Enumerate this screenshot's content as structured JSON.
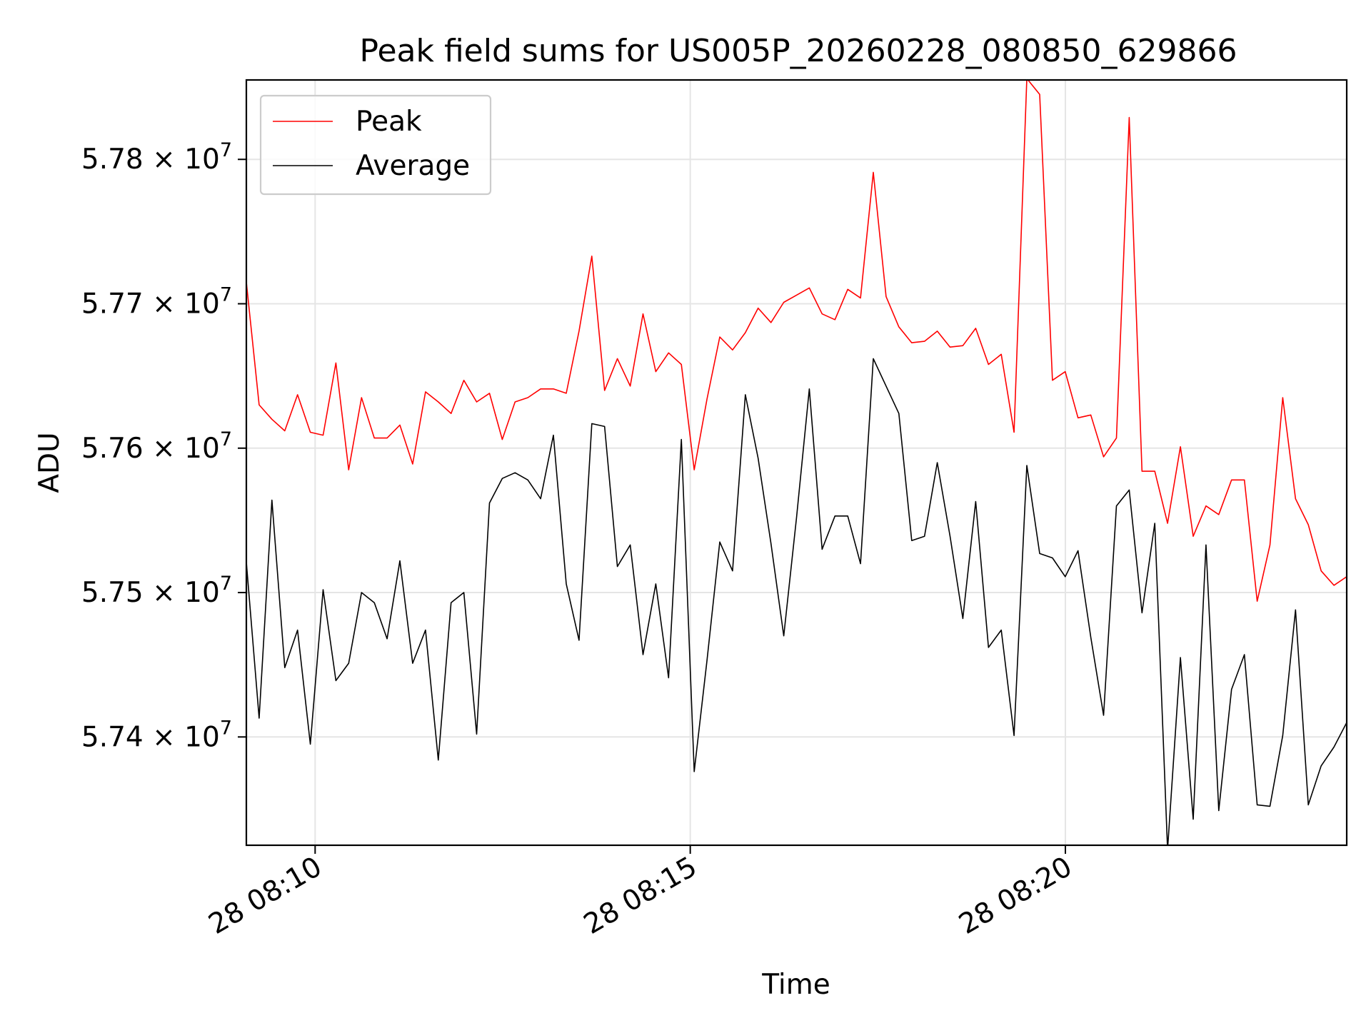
{
  "chart_data": {
    "type": "line",
    "title": "Peak field sums for US005P_20260228_080850_629866",
    "xlabel": "Time",
    "ylabel": "ADU",
    "x_start": "2026-02-28 08:09:05",
    "x_end": "2026-02-28 08:23:45",
    "x_tick_labels": [
      "28 08:10",
      "28 08:15",
      "28 08:20"
    ],
    "x_ticks": [
      "2026-02-28 08:10:00",
      "2026-02-28 08:15:00",
      "2026-02-28 08:20:00"
    ],
    "y_ticks": [
      57400000,
      57500000,
      57600000,
      57700000,
      57800000
    ],
    "y_tick_labels": [
      {
        "mantissa": "5.74",
        "exponent": "7"
      },
      {
        "mantissa": "5.75",
        "exponent": "7"
      },
      {
        "mantissa": "5.76",
        "exponent": "7"
      },
      {
        "mantissa": "5.77",
        "exponent": "7"
      },
      {
        "mantissa": "5.78",
        "exponent": "7"
      }
    ],
    "y_times_ten": "× 10",
    "ylim": [
      57325000,
      57855000
    ],
    "grid": true,
    "legend_position": "top-left",
    "series": [
      {
        "name": "Peak",
        "color": "#ff0000",
        "values": [
          57715000,
          57630000,
          57620000,
          57612000,
          57637000,
          57611000,
          57609000,
          57659000,
          57585000,
          57635000,
          57607000,
          57607000,
          57616000,
          57589000,
          57639000,
          57632000,
          57624000,
          57647000,
          57632000,
          57638000,
          57606000,
          57632000,
          57635000,
          57641000,
          57641000,
          57638000,
          57681000,
          57733000,
          57640000,
          57662000,
          57643000,
          57693000,
          57653000,
          57666000,
          57658000,
          57585000,
          57634000,
          57677000,
          57668000,
          57680000,
          57697000,
          57687000,
          57701000,
          57706000,
          57711000,
          57693000,
          57689000,
          57710000,
          57704000,
          57791000,
          57705000,
          57684000,
          57673000,
          57674000,
          57681000,
          57670000,
          57671000,
          57683000,
          57658000,
          57665000,
          57611000,
          57856000,
          57845000,
          57647000,
          57653000,
          57621000,
          57623000,
          57594000,
          57607000,
          57829000,
          57584000,
          57584000,
          57548000,
          57601000,
          57539000,
          57560000,
          57554000,
          57578000,
          57578000,
          57494000,
          57533000,
          57635000,
          57565000,
          57547000,
          57515000,
          57505000,
          57511000
        ]
      },
      {
        "name": "Average",
        "color": "#000000",
        "values": [
          57521000,
          57413000,
          57564000,
          57448000,
          57474000,
          57395000,
          57502000,
          57439000,
          57451000,
          57500000,
          57493000,
          57468000,
          57522000,
          57451000,
          57474000,
          57384000,
          57493000,
          57500000,
          57402000,
          57562000,
          57579000,
          57583000,
          57578000,
          57565000,
          57609000,
          57506000,
          57467000,
          57617000,
          57615000,
          57518000,
          57533000,
          57457000,
          57506000,
          57441000,
          57606000,
          57376000,
          57453000,
          57535000,
          57515000,
          57637000,
          57593000,
          57534000,
          57470000,
          57552000,
          57641000,
          57530000,
          57553000,
          57553000,
          57520000,
          57662000,
          57643000,
          57624000,
          57536000,
          57539000,
          57590000,
          57539000,
          57482000,
          57563000,
          57462000,
          57474000,
          57401000,
          57588000,
          57527000,
          57524000,
          57511000,
          57529000,
          57469000,
          57415000,
          57560000,
          57571000,
          57486000,
          57548000,
          57322000,
          57455000,
          57343000,
          57533000,
          57349000,
          57433000,
          57457000,
          57353000,
          57352000,
          57401000,
          57488000,
          57353000,
          57380000,
          57393000,
          57410000
        ]
      }
    ]
  }
}
